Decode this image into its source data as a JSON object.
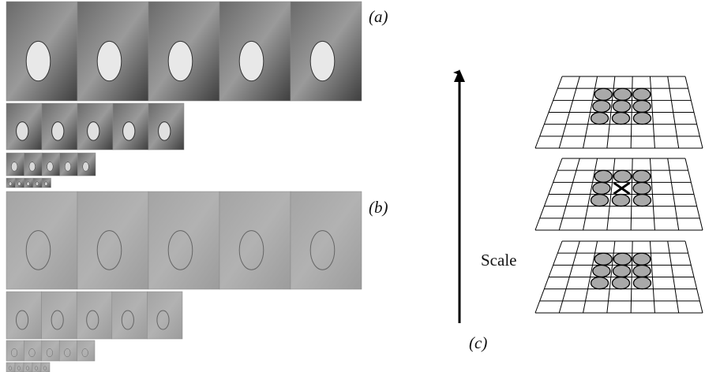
{
  "labels": {
    "a": "(a)",
    "b": "(b)",
    "scale": "Scale",
    "c": "(c)"
  }
}
